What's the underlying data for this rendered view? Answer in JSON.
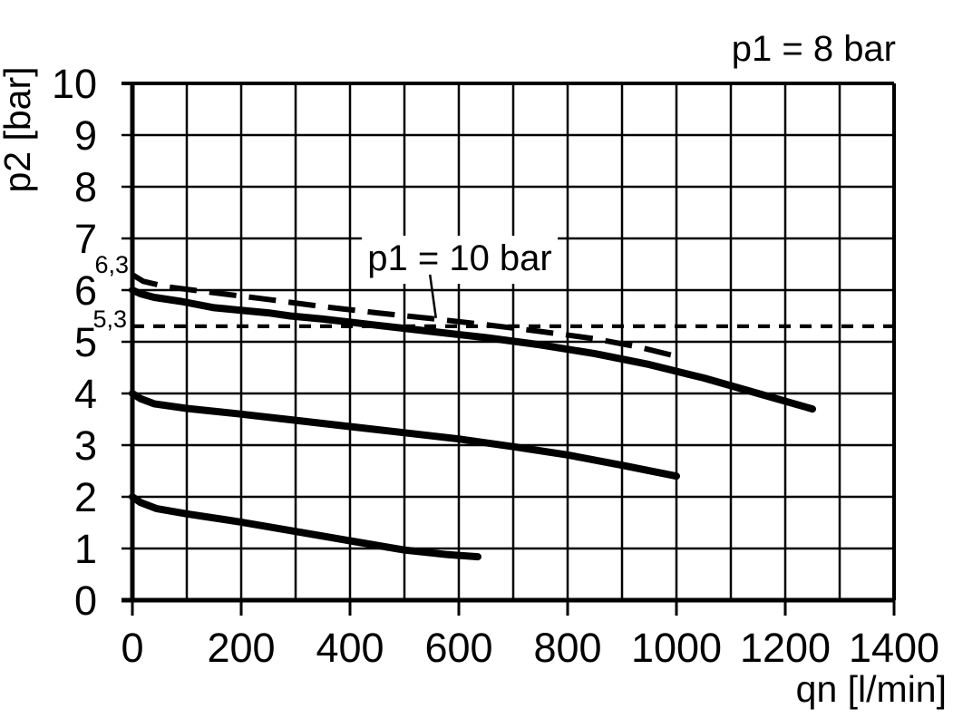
{
  "page": {
    "background_color": "#ffffff",
    "stroke_color": "#000000"
  },
  "chart_data": {
    "type": "line",
    "title": "p1 = 8 bar",
    "xlabel": "qn [l/min]",
    "ylabel": "p2 [bar]",
    "xlim": [
      0,
      1400
    ],
    "ylim": [
      0,
      10
    ],
    "grid": true,
    "x_gridline_step": 100,
    "x_tick_label_step": 200,
    "y_gridline_step": 1,
    "y_tick_label_step": 1,
    "x_tick_labels": [
      "0",
      "200",
      "400",
      "600",
      "800",
      "1000",
      "1200",
      "1400"
    ],
    "y_tick_labels": [
      "0",
      "1",
      "2",
      "3",
      "4",
      "5",
      "6",
      "7",
      "8",
      "9",
      "10"
    ],
    "legend_position": "none",
    "series": [
      {
        "id": "p2-6bar-curve",
        "name": "solid flow curve, outlet pressure 6 bar at zero flow (p1 = 8 bar)",
        "style": "solid",
        "points": [
          [
            0,
            6.0
          ],
          [
            15,
            5.93
          ],
          [
            40,
            5.86
          ],
          [
            90,
            5.78
          ],
          [
            150,
            5.66
          ],
          [
            250,
            5.56
          ],
          [
            290,
            5.5
          ],
          [
            350,
            5.44
          ],
          [
            450,
            5.32
          ],
          [
            550,
            5.2
          ],
          [
            650,
            5.08
          ],
          [
            750,
            4.94
          ],
          [
            850,
            4.77
          ],
          [
            950,
            4.56
          ],
          [
            1050,
            4.3
          ],
          [
            1150,
            4.0
          ],
          [
            1250,
            3.7
          ]
        ]
      },
      {
        "id": "p1-10bar-curve",
        "name": "p1 = 10 bar (long-dashed curve)",
        "style": "long-dash",
        "points": [
          [
            0,
            6.3
          ],
          [
            20,
            6.17
          ],
          [
            60,
            6.07
          ],
          [
            150,
            5.95
          ],
          [
            250,
            5.82
          ],
          [
            350,
            5.68
          ],
          [
            450,
            5.56
          ],
          [
            550,
            5.45
          ],
          [
            650,
            5.33
          ],
          [
            750,
            5.2
          ],
          [
            850,
            5.06
          ],
          [
            930,
            4.9
          ],
          [
            1000,
            4.72
          ]
        ]
      },
      {
        "id": "p2-4bar-curve",
        "name": "solid flow curve, outlet pressure 4 bar at zero flow (p1 = 8 bar)",
        "style": "solid",
        "points": [
          [
            0,
            4.0
          ],
          [
            15,
            3.9
          ],
          [
            40,
            3.8
          ],
          [
            100,
            3.71
          ],
          [
            200,
            3.6
          ],
          [
            300,
            3.48
          ],
          [
            400,
            3.36
          ],
          [
            500,
            3.24
          ],
          [
            600,
            3.12
          ],
          [
            700,
            2.97
          ],
          [
            800,
            2.81
          ],
          [
            900,
            2.61
          ],
          [
            1000,
            2.4
          ]
        ]
      },
      {
        "id": "p2-2bar-curve",
        "name": "solid flow curve, outlet pressure 2 bar at zero flow (p1 = 8 bar)",
        "style": "solid",
        "points": [
          [
            0,
            2.0
          ],
          [
            15,
            1.89
          ],
          [
            45,
            1.77
          ],
          [
            100,
            1.67
          ],
          [
            200,
            1.51
          ],
          [
            300,
            1.33
          ],
          [
            400,
            1.15
          ],
          [
            500,
            0.97
          ],
          [
            580,
            0.88
          ],
          [
            635,
            0.84
          ]
        ]
      },
      {
        "id": "p2-5-3bar-reference",
        "name": "horizontal short-dashed reference line at 5,3 bar",
        "style": "short-dash",
        "points": [
          [
            0,
            5.3
          ],
          [
            1400,
            5.3
          ]
        ]
      }
    ],
    "annotations": {
      "curve_label": {
        "text": "p1 = 10 bar",
        "leader": {
          "from": [
            547,
            6.3
          ],
          "to": [
            558,
            5.46
          ]
        }
      },
      "y_markers": [
        {
          "text": "6,3",
          "value": 6.3
        },
        {
          "text": "5,3",
          "value": 5.3
        }
      ]
    }
  }
}
